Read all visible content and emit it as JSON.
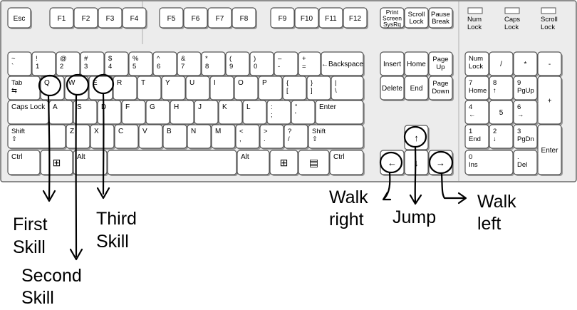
{
  "keyboard": {
    "function_row": [
      {
        "id": "esc",
        "t1": "Esc"
      },
      {
        "id": "f1",
        "t1": "F1"
      },
      {
        "id": "f2",
        "t1": "F2"
      },
      {
        "id": "f3",
        "t1": "F3"
      },
      {
        "id": "f4",
        "t1": "F4"
      },
      {
        "id": "f5",
        "t1": "F5"
      },
      {
        "id": "f6",
        "t1": "F6"
      },
      {
        "id": "f7",
        "t1": "F7"
      },
      {
        "id": "f8",
        "t1": "F8"
      },
      {
        "id": "f9",
        "t1": "F9"
      },
      {
        "id": "f10",
        "t1": "F10"
      },
      {
        "id": "f11",
        "t1": "F11"
      },
      {
        "id": "f12",
        "t1": "F12"
      },
      {
        "id": "print-screen",
        "t1": "Print",
        "t2": "Screen",
        "t3": "SysRq"
      },
      {
        "id": "scroll-lock",
        "t1": "Scroll",
        "t2": "Lock"
      },
      {
        "id": "pause-break",
        "t1": "Pause",
        "t2": "Break"
      }
    ],
    "indicators": [
      {
        "id": "num-lock",
        "t1": "Num",
        "t2": "Lock"
      },
      {
        "id": "caps-lock",
        "t1": "Caps",
        "t2": "Lock"
      },
      {
        "id": "scroll-lock",
        "t1": "Scroll",
        "t2": "Lock"
      }
    ],
    "number_row": [
      {
        "id": "tilde",
        "t1": "~",
        "t2": "`"
      },
      {
        "id": "1",
        "t1": "!",
        "t2": "1"
      },
      {
        "id": "2",
        "t1": "@",
        "t2": "2"
      },
      {
        "id": "3",
        "t1": "#",
        "t2": "3"
      },
      {
        "id": "4",
        "t1": "$",
        "t2": "4"
      },
      {
        "id": "5",
        "t1": "%",
        "t2": "5"
      },
      {
        "id": "6",
        "t1": "^",
        "t2": "6"
      },
      {
        "id": "7",
        "t1": "&",
        "t2": "7"
      },
      {
        "id": "8",
        "t1": "*",
        "t2": "8"
      },
      {
        "id": "9",
        "t1": "(",
        "t2": "9"
      },
      {
        "id": "0",
        "t1": ")",
        "t2": "0"
      },
      {
        "id": "minus",
        "t1": "–",
        "t2": "-"
      },
      {
        "id": "equals",
        "t1": "+",
        "t2": "="
      },
      {
        "id": "backspace",
        "t1": "←Backspace"
      }
    ],
    "qwerty_row": [
      {
        "id": "tab",
        "t1": "Tab",
        "t2": "⇆"
      },
      {
        "id": "q",
        "t1": "Q"
      },
      {
        "id": "w",
        "t1": "W"
      },
      {
        "id": "e",
        "t1": "E"
      },
      {
        "id": "r",
        "t1": "R"
      },
      {
        "id": "t",
        "t1": "T"
      },
      {
        "id": "y",
        "t1": "Y"
      },
      {
        "id": "u",
        "t1": "U"
      },
      {
        "id": "i",
        "t1": "I"
      },
      {
        "id": "o",
        "t1": "O"
      },
      {
        "id": "p",
        "t1": "P"
      },
      {
        "id": "bracket-left",
        "t1": "{",
        "t2": "["
      },
      {
        "id": "bracket-right",
        "t1": "}",
        "t2": "]"
      },
      {
        "id": "backslash",
        "t1": "|",
        "t2": "\\"
      }
    ],
    "home_row": [
      {
        "id": "caps-lock",
        "t1": "Caps Lock"
      },
      {
        "id": "a",
        "t1": "A"
      },
      {
        "id": "s",
        "t1": "S"
      },
      {
        "id": "d",
        "t1": "D"
      },
      {
        "id": "f",
        "t1": "F"
      },
      {
        "id": "g",
        "t1": "G"
      },
      {
        "id": "h",
        "t1": "H"
      },
      {
        "id": "j",
        "t1": "J"
      },
      {
        "id": "k",
        "t1": "K"
      },
      {
        "id": "l",
        "t1": "L"
      },
      {
        "id": "semicolon",
        "t1": ":",
        "t2": ";"
      },
      {
        "id": "quote",
        "t1": "\"",
        "t2": "'"
      },
      {
        "id": "enter",
        "t1": "Enter"
      }
    ],
    "shift_row": [
      {
        "id": "shift-left",
        "t1": "Shift",
        "t2": "⇧"
      },
      {
        "id": "z",
        "t1": "Z"
      },
      {
        "id": "x",
        "t1": "X"
      },
      {
        "id": "c",
        "t1": "C"
      },
      {
        "id": "v",
        "t1": "V"
      },
      {
        "id": "b",
        "t1": "B"
      },
      {
        "id": "n",
        "t1": "N"
      },
      {
        "id": "m",
        "t1": "M"
      },
      {
        "id": "comma",
        "t1": "<",
        "t2": ","
      },
      {
        "id": "period",
        "t1": ">",
        "t2": "."
      },
      {
        "id": "slash",
        "t1": "?",
        "t2": "/"
      },
      {
        "id": "shift-right",
        "t1": "Shift",
        "t2": "⇧"
      }
    ],
    "bottom_row": [
      {
        "id": "ctrl-left",
        "t1": "Ctrl"
      },
      {
        "id": "win-left",
        "t1": "⊞"
      },
      {
        "id": "alt-left",
        "t1": "Alt"
      },
      {
        "id": "space",
        "t1": ""
      },
      {
        "id": "alt-right",
        "t1": "Alt"
      },
      {
        "id": "win-right",
        "t1": "⊞"
      },
      {
        "id": "menu",
        "t1": "▤"
      },
      {
        "id": "ctrl-right",
        "t1": "Ctrl"
      }
    ],
    "nav_cluster": [
      {
        "id": "insert",
        "t1": "Insert"
      },
      {
        "id": "home",
        "t1": "Home"
      },
      {
        "id": "page-up",
        "t1": "Page",
        "t2": "Up"
      },
      {
        "id": "delete",
        "t1": "Delete"
      },
      {
        "id": "end",
        "t1": "End"
      },
      {
        "id": "page-down",
        "t1": "Page",
        "t2": "Down"
      }
    ],
    "arrows": [
      {
        "id": "up",
        "t1": "↑"
      },
      {
        "id": "left",
        "t1": "←"
      },
      {
        "id": "down",
        "t1": "↓"
      },
      {
        "id": "right",
        "t1": "→"
      }
    ],
    "numpad": [
      {
        "id": "num-lock",
        "t1": "Num",
        "t2": "Lock"
      },
      {
        "id": "divide",
        "t1": "/"
      },
      {
        "id": "multiply",
        "t1": "*"
      },
      {
        "id": "minus",
        "t1": "-"
      },
      {
        "id": "7",
        "t1": "7",
        "t2": "Home"
      },
      {
        "id": "8",
        "t1": "8",
        "t2": "↑"
      },
      {
        "id": "9",
        "t1": "9",
        "t2": "PgUp"
      },
      {
        "id": "plus",
        "t1": "+"
      },
      {
        "id": "4",
        "t1": "4",
        "t2": "←"
      },
      {
        "id": "5",
        "t1": "5"
      },
      {
        "id": "6",
        "t1": "6",
        "t2": "→"
      },
      {
        "id": "1",
        "t1": "1",
        "t2": "End"
      },
      {
        "id": "2",
        "t1": "2",
        "t2": "↓"
      },
      {
        "id": "3",
        "t1": "3",
        "t2": "PgDn"
      },
      {
        "id": "enter",
        "t1": "Enter"
      },
      {
        "id": "0",
        "t1": "0",
        "t2": "Ins"
      },
      {
        "id": "decimal",
        "t1": ".",
        "t2": "Del"
      }
    ]
  },
  "annotations": {
    "first_skill": [
      "First",
      "Skill"
    ],
    "second_skill": [
      "Second",
      "Skill"
    ],
    "third_skill": [
      "Third",
      "Skill"
    ],
    "walk_right": [
      "Walk",
      "right"
    ],
    "jump": [
      "Jump"
    ],
    "walk_left": [
      "Walk",
      "left"
    ]
  }
}
